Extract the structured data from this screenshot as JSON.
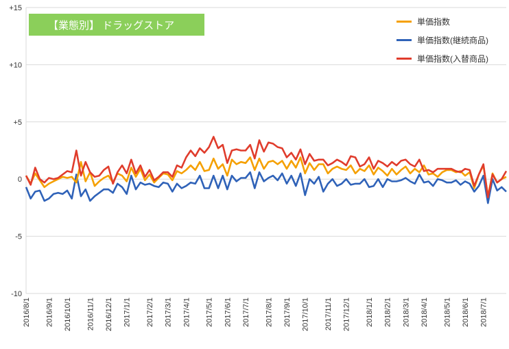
{
  "chart_data": {
    "type": "line",
    "title": "【業態別】 ドラッグストア",
    "xlabel": "",
    "ylabel": "",
    "ylim": [
      -10,
      15
    ],
    "ytick_labels": [
      "+15",
      "+10",
      "+5",
      "0",
      "-5",
      "-10"
    ],
    "ytick_values": [
      15,
      10,
      5,
      0,
      -5,
      -10
    ],
    "x_tick_labels": [
      "2016/8/1",
      "2016/9/1",
      "2016/10/1",
      "2016/11/1",
      "2016/12/1",
      "2017/1/1",
      "2017/2/1",
      "2017/3/1",
      "2017/4/1",
      "2017/5/1",
      "2017/6/1",
      "2017/7/1",
      "2017/8/1",
      "2017/9/1",
      "2017/10/1",
      "2017/11/1",
      "2017/12/1",
      "2018/1/1",
      "2018/2/1",
      "2018/3/1",
      "2018/4/1",
      "2018/5/1",
      "2018/6/1",
      "2018/7/1"
    ],
    "x_tick_indices": [
      0,
      5,
      9,
      14,
      18,
      22,
      27,
      31,
      35,
      40,
      44,
      48,
      53,
      57,
      61,
      66,
      70,
      75,
      79,
      83,
      87,
      92,
      96,
      100
    ],
    "grid": true,
    "legend_position": "top-right",
    "series": [
      {
        "name": "単価指数",
        "color": "#f5a000",
        "values": [
          0.3,
          -0.4,
          0.5,
          -0.1,
          -0.7,
          -0.4,
          -0.2,
          0,
          0.2,
          0.1,
          0.2,
          -0.3,
          1.5,
          -0.2,
          0.6,
          -0.6,
          -0.2,
          0.1,
          0.3,
          -0.3,
          0.5,
          0.3,
          -0.2,
          1.0,
          0.2,
          0.9,
          -0.1,
          0.4,
          -0.3,
          0.1,
          0.5,
          0.4,
          -0.1,
          0.7,
          0.5,
          0.8,
          1.2,
          0.8,
          1.5,
          0.7,
          0.8,
          1.8,
          0.9,
          1.3,
          0.3,
          1.7,
          1.3,
          1.5,
          1.4,
          1.9,
          0.8,
          1.8,
          0.9,
          1.5,
          1.6,
          1.3,
          1.6,
          0.9,
          1.6,
          1.0,
          1.9,
          0.5,
          1.4,
          0.8,
          1.3,
          1.3,
          0.5,
          0.9,
          1.1,
          0.9,
          0.8,
          1.2,
          0.5,
          0.9,
          0.7,
          1.2,
          0.4,
          1.0,
          0.7,
          0.3,
          0.9,
          0.4,
          0.8,
          1.1,
          0.5,
          0.9,
          0.6,
          1.2,
          0.4,
          0.5,
          0.2,
          0.6,
          0.8,
          0.8,
          0.6,
          0.7,
          0.3,
          0.6,
          -0.8,
          0.4,
          1.2,
          -1.5,
          0.5,
          -0.3,
          0,
          0.2
        ]
      },
      {
        "name": "単価指数(継続商品)",
        "color": "#2f62b8",
        "values": [
          -0.7,
          -1.7,
          -1.1,
          -1.0,
          -1.9,
          -1.7,
          -1.3,
          -1.2,
          -1.3,
          -1.0,
          -1.7,
          0.4,
          -1.5,
          -0.9,
          -1.9,
          -1.5,
          -1.2,
          -0.9,
          -0.9,
          -1.2,
          -0.4,
          -0.7,
          -1.3,
          0.3,
          -0.9,
          -0.3,
          -0.5,
          -0.4,
          -0.6,
          -0.7,
          -0.3,
          -0.4,
          -1.1,
          -0.4,
          -0.8,
          -0.6,
          -0.3,
          -0.4,
          0.3,
          -0.8,
          -0.8,
          0.3,
          -0.8,
          0.3,
          -0.9,
          0.3,
          -0.2,
          0.1,
          0.1,
          0.6,
          -0.8,
          0.6,
          -0.2,
          0.1,
          0.3,
          -0.1,
          0.5,
          -0.4,
          0.3,
          -0.6,
          0.5,
          -1.4,
          0,
          -0.4,
          0.2,
          -1.1,
          -0.4,
          0,
          -0.6,
          -0.4,
          0,
          -0.5,
          -0.4,
          -0.4,
          0,
          -0.7,
          -0.6,
          0,
          -0.7,
          0,
          -0.2,
          -0.2,
          -0.1,
          0.1,
          -0.2,
          -0.4,
          0.4,
          -0.3,
          -0.2,
          -0.6,
          0,
          -0.1,
          -0.3,
          -0.3,
          -0.1,
          -0.5,
          -0.2,
          -0.4,
          -1.1,
          -0.6,
          0.3,
          -2.1,
          0,
          -1.0,
          -0.7,
          -1.1
        ]
      },
      {
        "name": "単価指数(入替商品)",
        "color": "#e03c2c",
        "values": [
          0.3,
          -0.5,
          1.0,
          0,
          -0.3,
          0.1,
          0,
          0.1,
          0.4,
          0.7,
          0.6,
          2.5,
          0.3,
          1.5,
          0.6,
          0.2,
          0.3,
          0.8,
          1.1,
          -0.4,
          0.6,
          1.2,
          0.5,
          1.7,
          0.5,
          1.2,
          0.2,
          0.8,
          -0.1,
          0.2,
          0.6,
          0.6,
          0.2,
          1.2,
          1.0,
          1.9,
          2.5,
          2.0,
          2.7,
          2.3,
          2.8,
          3.7,
          2.7,
          3.0,
          1.4,
          2.5,
          2.6,
          2.5,
          2.5,
          3.0,
          1.8,
          3.4,
          2.4,
          3.2,
          3.1,
          2.8,
          2.7,
          1.9,
          2.3,
          1.7,
          2.6,
          1.3,
          2.2,
          1.6,
          1.7,
          1.7,
          1.2,
          1.4,
          1.7,
          1.5,
          1.2,
          2.0,
          1.9,
          1.1,
          1.3,
          1.9,
          0.9,
          1.6,
          1.4,
          1.1,
          1.5,
          1.2,
          1.6,
          1.7,
          1.3,
          1.1,
          1.7,
          0.7,
          0.8,
          0.6,
          0.9,
          0.9,
          0.9,
          0.9,
          0.7,
          0.6,
          0.9,
          0.8,
          -0.6,
          0.4,
          1.3,
          -1.6,
          0.4,
          -0.3,
          0,
          0.7
        ]
      }
    ]
  }
}
